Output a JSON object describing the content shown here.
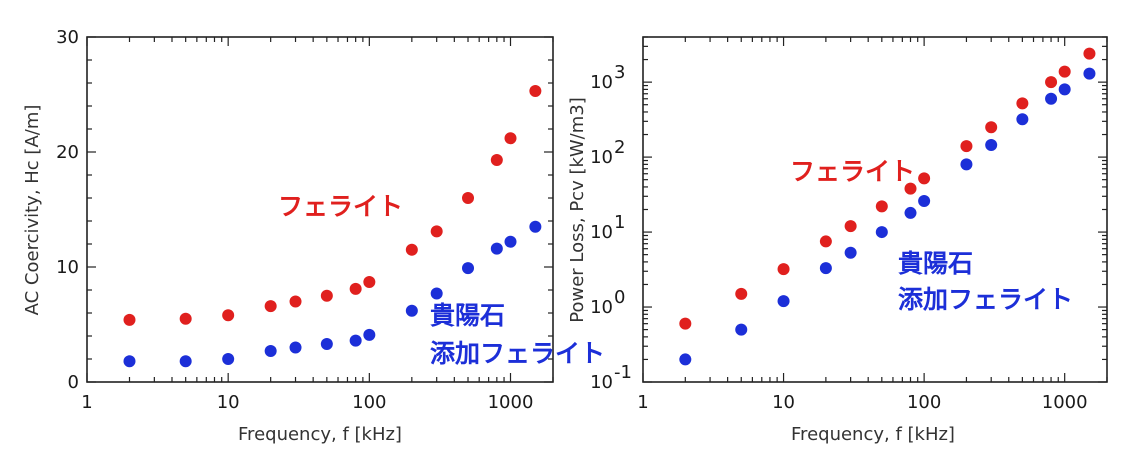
{
  "colors": {
    "ferrite": "#e0201e",
    "doped": "#1c2fd8",
    "axis": "#222222"
  },
  "chart_data": [
    {
      "type": "scatter",
      "xscale": "log",
      "xlim": [
        1,
        2000
      ],
      "ylim": [
        0,
        30
      ],
      "xticks": [
        1,
        10,
        100,
        1000
      ],
      "xtick_labels": [
        "1",
        "10",
        "100",
        "1000"
      ],
      "yticks": [
        0,
        10,
        20,
        30
      ],
      "ytick_labels": [
        "0",
        "10",
        "20",
        "30"
      ],
      "xlabel": "Frequency, f  [kHz]",
      "ylabel": "AC Coercivity, Hc [A/m]",
      "grid": false,
      "series": [
        {
          "name": "フェライト",
          "color": "#e0201e",
          "x": [
            2,
            5,
            10,
            20,
            30,
            50,
            80,
            100,
            200,
            300,
            500,
            800,
            1000,
            1500
          ],
          "y": [
            5.4,
            5.5,
            5.8,
            6.6,
            7.0,
            7.5,
            8.1,
            8.7,
            11.5,
            13.1,
            16.0,
            19.3,
            21.2,
            25.3
          ]
        },
        {
          "name": "貴陽石 添加フェライト",
          "color": "#1c2fd8",
          "x": [
            2,
            5,
            10,
            20,
            30,
            50,
            80,
            100,
            200,
            300,
            500,
            800,
            1000,
            1500
          ],
          "y": [
            1.8,
            1.8,
            2.0,
            2.7,
            3.0,
            3.3,
            3.6,
            4.1,
            6.2,
            7.7,
            9.9,
            11.6,
            12.2,
            13.5
          ]
        }
      ]
    },
    {
      "type": "scatter",
      "xscale": "log",
      "yscale": "log",
      "xlim": [
        1,
        2000
      ],
      "ylim": [
        0.1,
        4000
      ],
      "xticks": [
        1,
        10,
        100,
        1000
      ],
      "xtick_labels": [
        "1",
        "10",
        "100",
        "1000"
      ],
      "yticks": [
        0.1,
        1,
        10,
        100,
        1000
      ],
      "ytick_base": "10",
      "ytick_exps": [
        "-1",
        "0",
        "1",
        "2",
        "3"
      ],
      "xlabel": "Frequency, f [kHz]",
      "ylabel": "Power Loss, Pcv [kW/m3]",
      "grid": false,
      "series": [
        {
          "name": "フェライト",
          "color": "#e0201e",
          "x": [
            2,
            5,
            10,
            20,
            30,
            50,
            80,
            100,
            200,
            300,
            500,
            800,
            1000,
            1500
          ],
          "y": [
            0.6,
            1.5,
            3.2,
            7.5,
            12,
            22,
            38,
            52,
            140,
            250,
            520,
            1000,
            1380,
            2400
          ]
        },
        {
          "name": "貴陽石 添加フェライト",
          "color": "#1c2fd8",
          "x": [
            2,
            5,
            10,
            20,
            30,
            50,
            80,
            100,
            200,
            300,
            500,
            800,
            1000,
            1500
          ],
          "y": [
            0.2,
            0.5,
            1.2,
            3.3,
            5.3,
            10,
            18,
            26,
            80,
            145,
            320,
            600,
            800,
            1300
          ]
        }
      ]
    }
  ],
  "annotations": {
    "left_ferrite": "フェライト",
    "left_doped_line1": "貴陽石",
    "left_doped_line2": "添加フェライト",
    "right_ferrite": "フェライト",
    "right_doped_line1": "貴陽石",
    "right_doped_line2": "添加フェライト"
  }
}
